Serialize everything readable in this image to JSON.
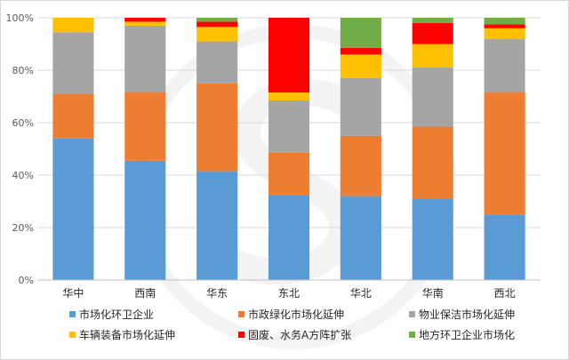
{
  "chart_data": {
    "type": "bar",
    "stacked": true,
    "title": "",
    "xlabel": "",
    "ylabel": "",
    "ylim": [
      0,
      100
    ],
    "y_ticks": [
      "0%",
      "20%",
      "40%",
      "60%",
      "80%",
      "100%"
    ],
    "legend_position": "bottom",
    "categories": [
      "华中",
      "西南",
      "华东",
      "东北",
      "华北",
      "华南",
      "西北"
    ],
    "series": [
      {
        "name": "市场化环卫企业",
        "color": "#5b9bd5",
        "values": [
          54,
          45.5,
          41.5,
          32.5,
          32,
          31,
          25
        ]
      },
      {
        "name": "市政绿化市场化延伸",
        "color": "#ed7d31",
        "values": [
          17,
          26,
          33.5,
          16,
          23,
          27.5,
          46.5
        ]
      },
      {
        "name": "物业保洁市场化延伸",
        "color": "#a5a5a5",
        "values": [
          23.5,
          25.5,
          16,
          20,
          22,
          22.5,
          20.5
        ]
      },
      {
        "name": "车辆装备市场化延伸",
        "color": "#ffc000",
        "values": [
          5.5,
          1.5,
          5.5,
          3,
          9,
          9,
          4
        ]
      },
      {
        "name": "固废、水务A方阵扩张",
        "color": "#ff0000",
        "values": [
          0,
          1.5,
          2,
          28.5,
          2.5,
          8,
          1.5
        ]
      },
      {
        "name": "地方环卫企业市场化",
        "color": "#70ad47",
        "values": [
          0,
          0,
          1.5,
          0,
          11.5,
          2,
          2.5
        ]
      }
    ]
  }
}
